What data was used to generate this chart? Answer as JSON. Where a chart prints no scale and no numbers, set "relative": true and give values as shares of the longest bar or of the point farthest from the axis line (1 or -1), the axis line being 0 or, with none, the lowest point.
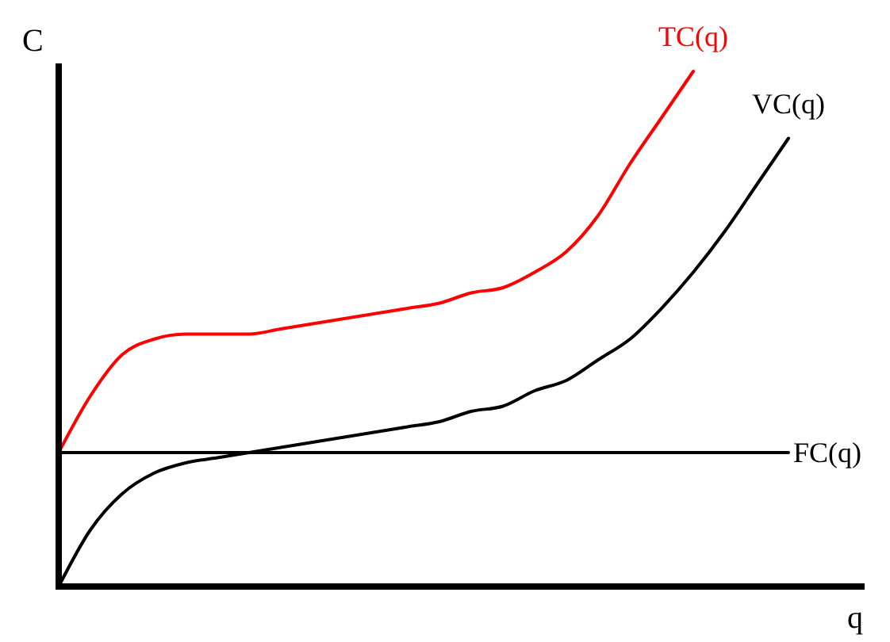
{
  "chart_data": {
    "type": "line",
    "relative": true,
    "xlabel": "q",
    "ylabel": "C",
    "categories": [
      null,
      null,
      null,
      null,
      null,
      null,
      null,
      null,
      null,
      null,
      null,
      null,
      null,
      null,
      null,
      null,
      null,
      null,
      null,
      null,
      null,
      null,
      null,
      null,
      null,
      null
    ],
    "series": [
      {
        "name": "TC(q)",
        "color": "#ff0000",
        "values": [
          0.26,
          0.37,
          0.45,
          0.48,
          0.49,
          0.49,
          0.49,
          0.5,
          0.51,
          0.52,
          0.53,
          0.54,
          0.55,
          0.57,
          0.58,
          0.61,
          0.65,
          0.72,
          0.82,
          0.91,
          1,
          null,
          null,
          null,
          null,
          null
        ]
      },
      {
        "name": "VC(q)",
        "color": "#000000",
        "values": [
          0,
          0.11,
          0.18,
          0.22,
          0.24,
          0.25,
          0.26,
          0.27,
          0.28,
          0.29,
          0.3,
          0.31,
          0.32,
          0.34,
          0.35,
          0.38,
          0.4,
          0.44,
          0.48,
          0.54,
          0.61,
          0.69,
          0.78,
          0.87,
          null,
          null
        ]
      },
      {
        "name": "FC(q)",
        "color": "#000000",
        "values": [
          0.26,
          0.26,
          0.26,
          0.26,
          0.26,
          0.26,
          0.26,
          0.26,
          0.26,
          0.26,
          0.26,
          0.26,
          0.26,
          0.26,
          0.26,
          0.26,
          0.26,
          0.26,
          0.26,
          0.26,
          0.26,
          0.26,
          0.26,
          0.26,
          null,
          null
        ]
      }
    ]
  }
}
